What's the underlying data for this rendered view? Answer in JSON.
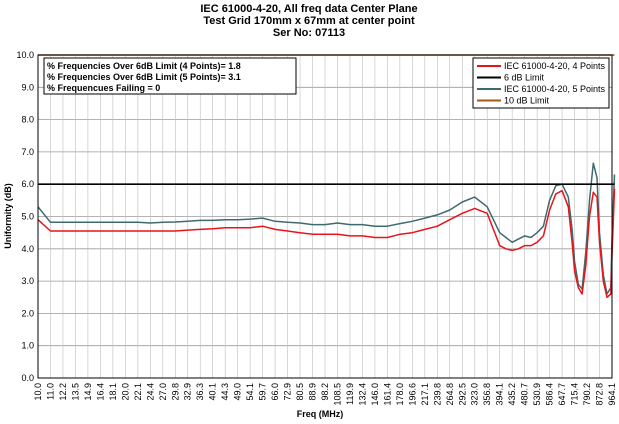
{
  "chart_data": {
    "type": "line",
    "title_lines": [
      "IEC 61000-4-20, All freq data Center Plane",
      "Test Grid 170mm x 67mm at center point",
      "Ser No: 07113"
    ],
    "xlabel": "Freq (MHz)",
    "ylabel": "Uniformity (dB)",
    "ylim": [
      0,
      10
    ],
    "yticks": [
      "0.0",
      "1.0",
      "2.0",
      "3.0",
      "4.0",
      "5.0",
      "6.0",
      "7.0",
      "8.0",
      "9.0",
      "10.0"
    ],
    "x_ticks": [
      "10.0",
      "11.0",
      "12.2",
      "13.5",
      "14.9",
      "16.4",
      "18.1",
      "20.0",
      "22.1",
      "24.4",
      "27.0",
      "29.8",
      "32.9",
      "36.3",
      "40.1",
      "44.3",
      "49.0",
      "54.1",
      "59.7",
      "66.0",
      "72.9",
      "80.5",
      "88.9",
      "98.2",
      "108.5",
      "119.9",
      "132.4",
      "146.0",
      "161.4",
      "178.0",
      "196.6",
      "217.1",
      "239.8",
      "264.8",
      "292.5",
      "323.0",
      "356.8",
      "394.1",
      "435.2",
      "480.7",
      "530.9",
      "586.4",
      "647.7",
      "715.4",
      "790.2",
      "872.8",
      "964.1"
    ],
    "grid": true,
    "legend_position": "top-right",
    "stats_box": [
      "% Frequencies  Over 6dB Limit  (4 Points)= 1.8",
      "% Frequencies  Over 6dB Limit  (5 Points)= 3.1",
      "% Frequencues  Failing  = 0"
    ],
    "series": [
      {
        "name": "IEC 61000-4-20, 4 Points",
        "color": "#e8141a",
        "x": [
          0,
          1,
          2,
          3,
          4,
          5,
          6,
          7,
          8,
          9,
          10,
          11,
          12,
          13,
          14,
          15,
          16,
          17,
          18,
          19,
          20,
          21,
          22,
          23,
          24,
          25,
          26,
          27,
          28,
          29,
          30,
          31,
          32,
          33,
          34,
          35,
          36,
          37,
          37.5,
          38,
          38.5,
          39,
          39.5,
          40,
          40.5,
          41,
          41.5,
          42,
          42.5,
          42.8,
          43,
          43.3,
          43.6,
          43.9,
          44.2,
          44.5,
          44.8,
          45,
          45.3,
          45.6,
          45.9,
          46,
          46.2
        ],
        "values": [
          4.9,
          4.55,
          4.55,
          4.55,
          4.55,
          4.55,
          4.55,
          4.55,
          4.55,
          4.55,
          4.55,
          4.55,
          4.58,
          4.6,
          4.62,
          4.65,
          4.65,
          4.65,
          4.7,
          4.6,
          4.55,
          4.5,
          4.45,
          4.45,
          4.45,
          4.4,
          4.4,
          4.35,
          4.35,
          4.45,
          4.5,
          4.6,
          4.7,
          4.9,
          5.1,
          5.25,
          5.1,
          4.1,
          4.0,
          3.95,
          4.0,
          4.1,
          4.1,
          4.2,
          4.4,
          5.2,
          5.7,
          5.8,
          5.3,
          4.2,
          3.3,
          2.8,
          2.6,
          3.5,
          5.0,
          5.75,
          5.6,
          4.2,
          3.0,
          2.5,
          2.6,
          3.8,
          5.85
        ]
      },
      {
        "name": "6 dB Limit",
        "color": "#000000",
        "x": [
          0,
          46.2
        ],
        "values": [
          6.0,
          6.0
        ]
      },
      {
        "name": "IEC 61000-4-20, 5 Points",
        "color": "#3f6a6e",
        "x": [
          0,
          1,
          2,
          3,
          4,
          5,
          6,
          7,
          8,
          9,
          10,
          11,
          12,
          13,
          14,
          15,
          16,
          17,
          18,
          19,
          20,
          21,
          22,
          23,
          24,
          25,
          26,
          27,
          28,
          29,
          30,
          31,
          32,
          33,
          34,
          35,
          36,
          37,
          37.5,
          38,
          38.5,
          39,
          39.5,
          40,
          40.5,
          41,
          41.5,
          42,
          42.5,
          42.8,
          43,
          43.3,
          43.6,
          43.9,
          44.2,
          44.5,
          44.8,
          45,
          45.3,
          45.6,
          45.9,
          46,
          46.2
        ],
        "values": [
          5.3,
          4.82,
          4.82,
          4.82,
          4.82,
          4.82,
          4.82,
          4.82,
          4.82,
          4.8,
          4.82,
          4.83,
          4.85,
          4.88,
          4.88,
          4.9,
          4.9,
          4.92,
          4.95,
          4.85,
          4.82,
          4.8,
          4.75,
          4.75,
          4.8,
          4.75,
          4.75,
          4.7,
          4.7,
          4.78,
          4.85,
          4.95,
          5.05,
          5.2,
          5.45,
          5.6,
          5.3,
          4.5,
          4.35,
          4.2,
          4.3,
          4.4,
          4.35,
          4.5,
          4.7,
          5.5,
          5.95,
          6.0,
          5.6,
          4.6,
          3.6,
          2.9,
          2.75,
          3.9,
          5.5,
          6.65,
          6.2,
          4.5,
          3.2,
          2.6,
          2.8,
          4.3,
          6.3
        ]
      },
      {
        "name": "10 dB Limit",
        "color": "#a65a10",
        "x": [
          0,
          46.2
        ],
        "values": [
          10.0,
          10.0
        ]
      }
    ]
  }
}
